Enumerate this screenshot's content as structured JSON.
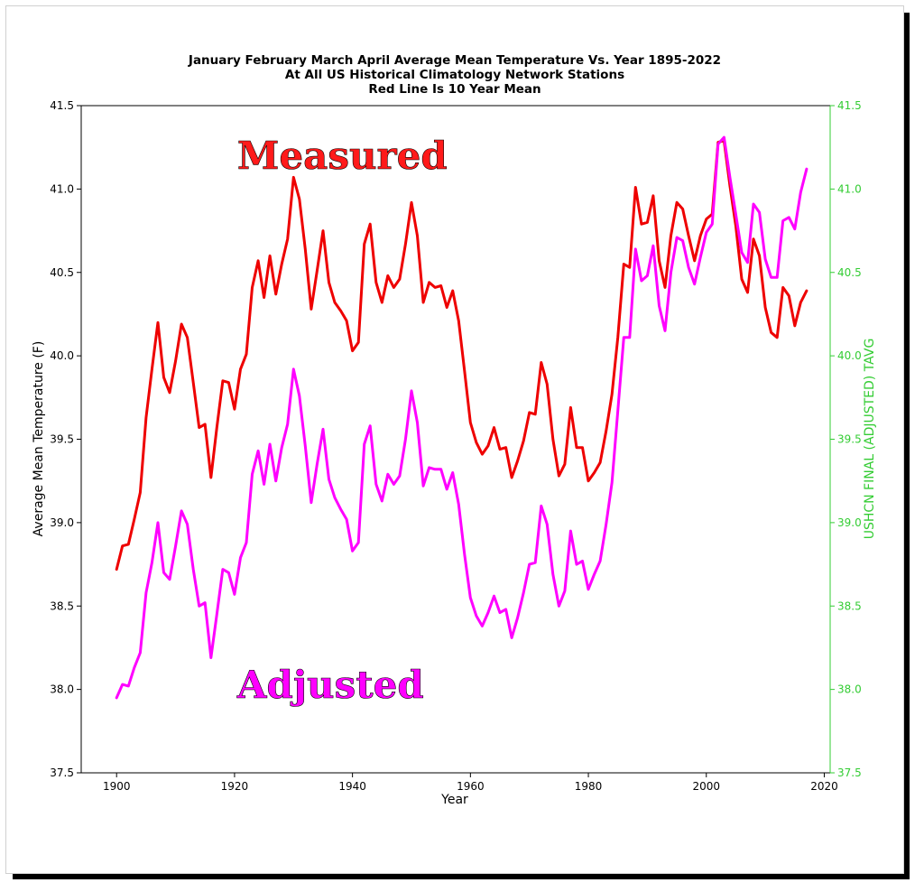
{
  "chart_data": {
    "type": "line",
    "title_lines": [
      "January February March April Average Mean Temperature Vs. Year 1895-2022",
      "At All US Historical Climatology Network Stations",
      "Red Line Is 10 Year Mean"
    ],
    "xlabel": "Year",
    "ylabel": "Average Mean Temperature (F)",
    "ylabel_right": "USHCN FINAL (ADJUSTED) TAVG",
    "xlim": [
      1894,
      2021
    ],
    "ylim": [
      37.5,
      41.5
    ],
    "x_ticks": [
      "1900",
      "1920",
      "1940",
      "1960",
      "1980",
      "2000",
      "2020"
    ],
    "y_ticks": [
      "37.5",
      "38.0",
      "38.5",
      "39.0",
      "39.5",
      "40.0",
      "40.5",
      "41.0",
      "41.5"
    ],
    "y_ticks_right": [
      "37.5",
      "38.0",
      "38.5",
      "39.0",
      "39.5",
      "40.0",
      "40.5",
      "41.0",
      "41.5"
    ],
    "annotations": [
      {
        "text": "Measured",
        "color": "#ff1a1a",
        "x": 1920,
        "y": 41.12
      },
      {
        "text": "Adjusted",
        "color": "#ff00ff",
        "x": 1920,
        "y": 37.95
      }
    ],
    "axis_colors": {
      "left": "#000000",
      "right": "#33cc33"
    },
    "series": [
      {
        "color": "#ee0000",
        "x": [
          1900,
          1901,
          1902,
          1903,
          1904,
          1905,
          1906,
          1907,
          1908,
          1909,
          1910,
          1911,
          1912,
          1913,
          1914,
          1915,
          1916,
          1917,
          1918,
          1919,
          1920,
          1921,
          1922,
          1923,
          1924,
          1925,
          1926,
          1927,
          1928,
          1929,
          1930,
          1931,
          1932,
          1933,
          1934,
          1935,
          1936,
          1937,
          1938,
          1939,
          1940,
          1941,
          1942,
          1943,
          1944,
          1945,
          1946,
          1947,
          1948,
          1949,
          1950,
          1951,
          1952,
          1953,
          1954,
          1955,
          1956,
          1957,
          1958,
          1959,
          1960,
          1961,
          1962,
          1963,
          1964,
          1965,
          1966,
          1967,
          1968,
          1969,
          1970,
          1971,
          1972,
          1973,
          1974,
          1975,
          1976,
          1977,
          1978,
          1979,
          1980,
          1981,
          1982,
          1983,
          1984,
          1985,
          1986,
          1987,
          1988,
          1989,
          1990,
          1991,
          1992,
          1993,
          1994,
          1995,
          1996,
          1997,
          1998,
          1999,
          2000,
          2001,
          2002,
          2003,
          2004,
          2005,
          2006,
          2007,
          2008,
          2009,
          2010,
          2011,
          2012,
          2013,
          2014,
          2015,
          2016,
          2017
        ],
        "values": [
          38.72,
          38.86,
          38.87,
          39.02,
          39.18,
          39.63,
          39.92,
          40.2,
          39.87,
          39.78,
          39.97,
          40.19,
          40.11,
          39.84,
          39.57,
          39.59,
          39.27,
          39.57,
          39.85,
          39.84,
          39.68,
          39.92,
          40.01,
          40.41,
          40.57,
          40.35,
          40.6,
          40.37,
          40.55,
          40.7,
          41.07,
          40.94,
          40.64,
          40.28,
          40.51,
          40.75,
          40.44,
          40.32,
          40.27,
          40.21,
          40.03,
          40.08,
          40.67,
          40.79,
          40.44,
          40.32,
          40.48,
          40.41,
          40.46,
          40.67,
          40.92,
          40.72,
          40.32,
          40.44,
          40.41,
          40.42,
          40.29,
          40.39,
          40.21,
          39.91,
          39.6,
          39.48,
          39.41,
          39.46,
          39.57,
          39.44,
          39.45,
          39.27,
          39.37,
          39.49,
          39.66,
          39.65,
          39.96,
          39.83,
          39.5,
          39.28,
          39.35,
          39.69,
          39.45,
          39.45,
          39.25,
          39.3,
          39.36,
          39.55,
          39.77,
          40.11,
          40.55,
          40.53,
          41.01,
          40.79,
          40.8,
          40.96,
          40.57,
          40.41,
          40.72,
          40.92,
          40.88,
          40.72,
          40.57,
          40.72,
          40.82,
          40.85,
          41.28,
          41.29,
          41.02,
          40.78,
          40.46,
          40.38,
          40.7,
          40.6,
          40.29,
          40.14,
          40.11,
          40.41,
          40.36,
          40.18,
          40.32,
          40.39
        ]
      },
      {
        "color": "#ff00ff",
        "x": [
          1900,
          1901,
          1902,
          1903,
          1904,
          1905,
          1906,
          1907,
          1908,
          1909,
          1910,
          1911,
          1912,
          1913,
          1914,
          1915,
          1916,
          1917,
          1918,
          1919,
          1920,
          1921,
          1922,
          1923,
          1924,
          1925,
          1926,
          1927,
          1928,
          1929,
          1930,
          1931,
          1932,
          1933,
          1934,
          1935,
          1936,
          1937,
          1938,
          1939,
          1940,
          1941,
          1942,
          1943,
          1944,
          1945,
          1946,
          1947,
          1948,
          1949,
          1950,
          1951,
          1952,
          1953,
          1954,
          1955,
          1956,
          1957,
          1958,
          1959,
          1960,
          1961,
          1962,
          1963,
          1964,
          1965,
          1966,
          1967,
          1968,
          1969,
          1970,
          1971,
          1972,
          1973,
          1974,
          1975,
          1976,
          1977,
          1978,
          1979,
          1980,
          1981,
          1982,
          1983,
          1984,
          1985,
          1986,
          1987,
          1988,
          1989,
          1990,
          1991,
          1992,
          1993,
          1994,
          1995,
          1996,
          1997,
          1998,
          1999,
          2000,
          2001,
          2002,
          2003,
          2004,
          2005,
          2006,
          2007,
          2008,
          2009,
          2010,
          2011,
          2012,
          2013,
          2014,
          2015,
          2016,
          2017
        ],
        "values": [
          37.95,
          38.03,
          38.02,
          38.13,
          38.22,
          38.58,
          38.76,
          39.0,
          38.7,
          38.66,
          38.86,
          39.07,
          38.99,
          38.72,
          38.5,
          38.52,
          38.19,
          38.45,
          38.72,
          38.7,
          38.57,
          38.79,
          38.88,
          39.29,
          39.43,
          39.23,
          39.47,
          39.25,
          39.45,
          39.59,
          39.92,
          39.76,
          39.46,
          39.12,
          39.35,
          39.56,
          39.26,
          39.15,
          39.08,
          39.02,
          38.83,
          38.88,
          39.47,
          39.58,
          39.23,
          39.13,
          39.29,
          39.23,
          39.28,
          39.5,
          39.79,
          39.6,
          39.22,
          39.33,
          39.32,
          39.32,
          39.2,
          39.3,
          39.11,
          38.81,
          38.55,
          38.44,
          38.38,
          38.46,
          38.56,
          38.46,
          38.48,
          38.31,
          38.43,
          38.58,
          38.75,
          38.76,
          39.1,
          38.99,
          38.69,
          38.5,
          38.59,
          38.95,
          38.75,
          38.77,
          38.6,
          38.69,
          38.77,
          38.99,
          39.24,
          39.67,
          40.11,
          40.11,
          40.64,
          40.45,
          40.48,
          40.66,
          40.3,
          40.15,
          40.5,
          40.71,
          40.69,
          40.53,
          40.43,
          40.59,
          40.74,
          40.79,
          41.27,
          41.31,
          41.07,
          40.85,
          40.62,
          40.56,
          40.91,
          40.86,
          40.58,
          40.47,
          40.47,
          40.81,
          40.83,
          40.76,
          40.98,
          41.12
        ]
      }
    ]
  }
}
